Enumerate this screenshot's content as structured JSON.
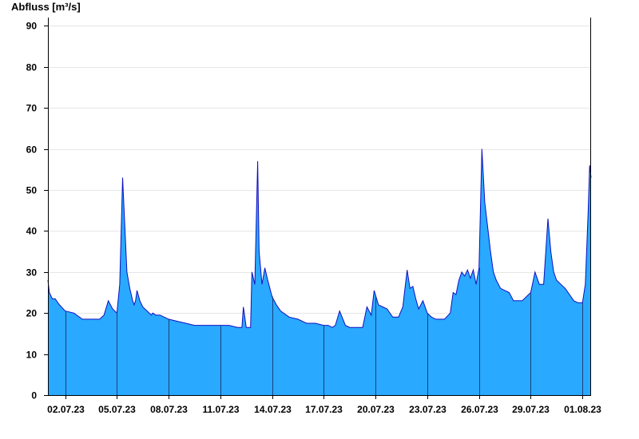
{
  "chart_data": {
    "type": "area",
    "ylabel": "Abfluss [m³/s]",
    "xlabel": "",
    "title": "",
    "ylim": [
      0,
      92
    ],
    "y_ticks": [
      0,
      10,
      20,
      30,
      40,
      50,
      60,
      70,
      80,
      90
    ],
    "x_range": [
      "2023-07-01T00:00",
      "2023-08-01T12:00"
    ],
    "x_ticks": [
      {
        "date": "2023-07-02",
        "label": "02.07.23"
      },
      {
        "date": "2023-07-05",
        "label": "05.07.23"
      },
      {
        "date": "2023-07-08",
        "label": "08.07.23"
      },
      {
        "date": "2023-07-11",
        "label": "11.07.23"
      },
      {
        "date": "2023-07-14",
        "label": "14.07.23"
      },
      {
        "date": "2023-07-17",
        "label": "17.07.23"
      },
      {
        "date": "2023-07-20",
        "label": "20.07.23"
      },
      {
        "date": "2023-07-23",
        "label": "23.07.23"
      },
      {
        "date": "2023-07-26",
        "label": "26.07.23"
      },
      {
        "date": "2023-07-29",
        "label": "29.07.23"
      },
      {
        "date": "2023-08-01",
        "label": "01.08.23"
      }
    ],
    "grid": "horizontal",
    "colors": {
      "fill": "#29A9FF",
      "line": "#1010C0",
      "axis": "#000000",
      "grid": "#E6E6E6"
    },
    "series": [
      {
        "x": [
          "2023-07-01T00:00",
          "2023-07-01T02:00",
          "2023-07-01T06:00",
          "2023-07-01T10:00",
          "2023-07-01T16:00",
          "2023-07-02T00:00",
          "2023-07-02T12:00",
          "2023-07-03T00:00",
          "2023-07-03T12:00",
          "2023-07-04T00:00",
          "2023-07-04T06:00",
          "2023-07-04T12:00",
          "2023-07-04T18:00",
          "2023-07-05T00:00",
          "2023-07-05T04:00",
          "2023-07-05T08:00",
          "2023-07-05T14:00",
          "2023-07-05T18:00",
          "2023-07-05T22:00",
          "2023-07-06T00:00",
          "2023-07-06T02:00",
          "2023-07-06T04:00",
          "2023-07-06T08:00",
          "2023-07-06T12:00",
          "2023-07-06T18:00",
          "2023-07-07T00:00",
          "2023-07-07T02:00",
          "2023-07-07T06:00",
          "2023-07-07T12:00",
          "2023-07-08T00:00",
          "2023-07-08T12:00",
          "2023-07-09T00:00",
          "2023-07-09T12:00",
          "2023-07-10T00:00",
          "2023-07-10T12:00",
          "2023-07-11T00:00",
          "2023-07-11T12:00",
          "2023-07-12T00:00",
          "2023-07-12T06:00",
          "2023-07-12T08:00",
          "2023-07-12T12:00",
          "2023-07-12T18:00",
          "2023-07-12T20:00",
          "2023-07-13T00:00",
          "2023-07-13T04:00",
          "2023-07-13T06:00",
          "2023-07-13T10:00",
          "2023-07-13T14:00",
          "2023-07-13T18:00",
          "2023-07-14T00:00",
          "2023-07-14T06:00",
          "2023-07-14T12:00",
          "2023-07-15T00:00",
          "2023-07-15T12:00",
          "2023-07-16T00:00",
          "2023-07-16T12:00",
          "2023-07-17T00:00",
          "2023-07-17T06:00",
          "2023-07-17T12:00",
          "2023-07-17T16:00",
          "2023-07-17T22:00",
          "2023-07-18T06:00",
          "2023-07-18T12:00",
          "2023-07-19T00:00",
          "2023-07-19T06:00",
          "2023-07-19T12:00",
          "2023-07-19T18:00",
          "2023-07-19T22:00",
          "2023-07-20T04:00",
          "2023-07-20T10:00",
          "2023-07-20T16:00",
          "2023-07-21T00:00",
          "2023-07-21T08:00",
          "2023-07-21T14:00",
          "2023-07-21T20:00",
          "2023-07-22T00:00",
          "2023-07-22T04:00",
          "2023-07-22T08:00",
          "2023-07-22T12:00",
          "2023-07-22T18:00",
          "2023-07-23T00:00",
          "2023-07-23T06:00",
          "2023-07-23T12:00",
          "2023-07-24T00:00",
          "2023-07-24T08:00",
          "2023-07-24T12:00",
          "2023-07-24T16:00",
          "2023-07-24T20:00",
          "2023-07-25T00:00",
          "2023-07-25T04:00",
          "2023-07-25T08:00",
          "2023-07-25T12:00",
          "2023-07-25T16:00",
          "2023-07-25T20:00",
          "2023-07-26T00:00",
          "2023-07-26T04:00",
          "2023-07-26T08:00",
          "2023-07-26T12:00",
          "2023-07-26T16:00",
          "2023-07-26T20:00",
          "2023-07-27T00:00",
          "2023-07-27T06:00",
          "2023-07-27T12:00",
          "2023-07-27T18:00",
          "2023-07-28T00:00",
          "2023-07-28T12:00",
          "2023-07-29T00:00",
          "2023-07-29T06:00",
          "2023-07-29T12:00",
          "2023-07-29T18:00",
          "2023-07-30T00:00",
          "2023-07-30T04:00",
          "2023-07-30T08:00",
          "2023-07-30T12:00",
          "2023-07-30T18:00",
          "2023-07-31T00:00",
          "2023-07-31T06:00",
          "2023-07-31T12:00",
          "2023-07-31T18:00",
          "2023-08-01T00:00",
          "2023-08-01T04:00",
          "2023-08-01T08:00",
          "2023-08-01T10:00",
          "2023-08-01T12:00"
        ],
        "y": [
          28,
          25,
          23.5,
          23.5,
          22,
          20.5,
          20,
          18.5,
          18.5,
          18.5,
          19.5,
          23,
          21,
          20,
          27,
          53,
          30,
          26,
          23,
          22,
          23,
          25.5,
          23,
          21.5,
          20.5,
          19.5,
          20,
          19.5,
          19.5,
          18.5,
          18,
          17.5,
          17,
          17,
          17,
          17,
          17,
          16.5,
          16.5,
          21.5,
          16.5,
          16.5,
          30,
          27,
          57,
          35,
          27,
          31,
          28,
          24,
          22,
          20.5,
          19,
          18.5,
          17.5,
          17.5,
          17,
          17,
          16.5,
          17,
          20.5,
          17,
          16.5,
          16.5,
          16.5,
          21.5,
          19.5,
          25.5,
          22,
          21.5,
          21,
          19,
          19,
          21.5,
          30.5,
          26,
          26.5,
          23.5,
          21,
          23,
          20,
          19,
          18.5,
          18.5,
          20,
          25,
          24.5,
          28,
          30,
          29,
          30.5,
          28.5,
          30.5,
          27,
          31,
          60,
          47,
          41,
          35,
          30,
          28,
          26,
          25.5,
          25,
          23,
          23,
          25,
          30,
          27,
          27,
          43,
          35,
          30,
          28,
          27,
          26,
          24.5,
          23,
          22.5,
          22.5,
          27,
          45,
          56,
          53
        ]
      }
    ]
  }
}
